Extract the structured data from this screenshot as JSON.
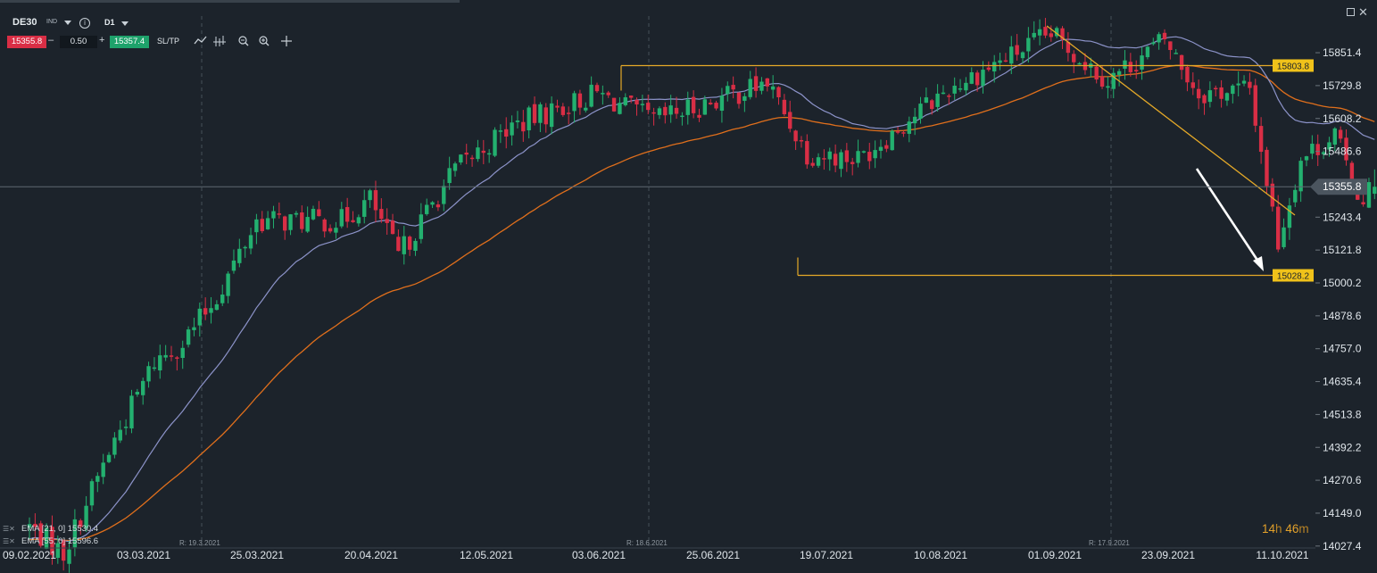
{
  "header": {
    "symbol": "DE30",
    "market_tag": "IND",
    "timeframe": "D1",
    "bid": "15355.8",
    "ask": "15357.4",
    "quantity": "0.50",
    "sltp_label": "SL/TP",
    "minus": "–",
    "plus": "+",
    "info_icon": "info-icon",
    "tools": [
      "line-icon",
      "indicator-icon",
      "zoom-out-icon",
      "zoom-in-icon",
      "crosshair-icon"
    ]
  },
  "timer": {
    "hours": "14",
    "h": "h",
    "minutes": "46",
    "m": "m"
  },
  "legend": [
    {
      "label": "EMA [21, 0] 15530.4",
      "color": "#9aa4d6"
    },
    {
      "label": "EMA [55, 0] 15596.6",
      "color": "#e06f1c"
    }
  ],
  "colors": {
    "bull": "#23b06f",
    "bear": "#d92e45",
    "ema21": "#8c93c9",
    "ema55": "#e06f1c",
    "annotation": "#e5a928",
    "background": "#1c232b",
    "grid": "#46505a"
  },
  "chart_data": {
    "type": "candlestick",
    "y_range": [
      14000,
      16050
    ],
    "y_ticks": [
      "15851.4",
      "15729.8",
      "15608.2",
      "15486.6",
      "15243.4",
      "15121.8",
      "15000.2",
      "14878.6",
      "14757.0",
      "14635.4",
      "14513.8",
      "14392.2",
      "14270.6",
      "14149.0",
      "14027.4"
    ],
    "x_ticks": [
      "09.02.2021",
      "03.03.2021",
      "25.03.2021",
      "20.04.2021",
      "12.05.2021",
      "03.06.2021",
      "25.06.2021",
      "19.07.2021",
      "10.08.2021",
      "01.09.2021",
      "23.09.2021",
      "11.10.2021"
    ],
    "current_price": "15355.8",
    "level_labels": [
      "15803.8",
      "15028.2"
    ],
    "levels": [
      15803.8,
      15028.2
    ],
    "rollover_labels": [
      "R: 19.3.2021",
      "R: 18.6.2021",
      "R: 17.9.2021"
    ],
    "ema21_last": 15530.4,
    "ema55_last": 15596.6,
    "anchors": [
      [
        0,
        14100
      ],
      [
        6,
        14000
      ],
      [
        15,
        14420
      ],
      [
        22,
        14710
      ],
      [
        27,
        14780
      ],
      [
        33,
        14950
      ],
      [
        40,
        15230
      ],
      [
        55,
        15230
      ],
      [
        60,
        15310
      ],
      [
        65,
        15100
      ],
      [
        75,
        15420
      ],
      [
        85,
        15580
      ],
      [
        100,
        15700
      ],
      [
        110,
        15600
      ],
      [
        130,
        15740
      ],
      [
        137,
        15480
      ],
      [
        146,
        15460
      ],
      [
        162,
        15720
      ],
      [
        180,
        15920
      ],
      [
        190,
        15750
      ],
      [
        200,
        15900
      ],
      [
        206,
        15700
      ],
      [
        215,
        15720
      ],
      [
        220,
        15150
      ],
      [
        224,
        15460
      ],
      [
        230,
        15550
      ],
      [
        234,
        15320
      ],
      [
        237,
        15350
      ]
    ]
  }
}
